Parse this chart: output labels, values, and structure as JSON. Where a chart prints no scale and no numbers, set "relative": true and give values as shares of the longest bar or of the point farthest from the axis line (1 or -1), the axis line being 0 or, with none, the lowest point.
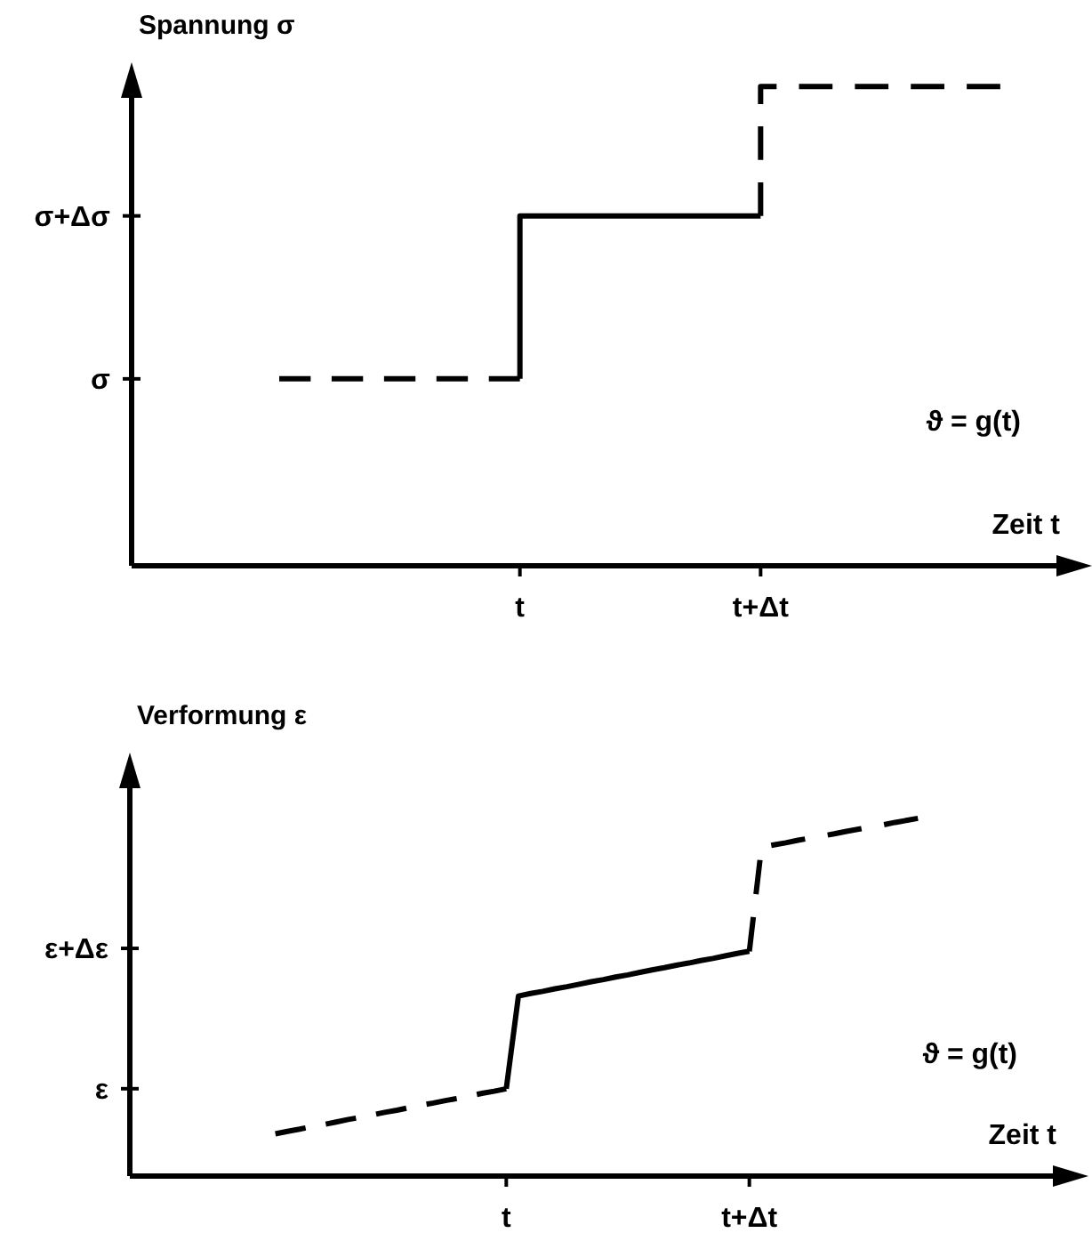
{
  "chart_data": [
    {
      "type": "step",
      "relative": true,
      "ylabel": "Spannung σ",
      "xlabel": "Zeit t",
      "categories": [
        null,
        "t",
        "t+Δt",
        null
      ],
      "series": [
        {
          "values": [
            0.39,
            0.39,
            null,
            null
          ],
          "color": "#000000",
          "line_style": "dashed"
        },
        {
          "values": [
            null,
            0.39,
            0.73,
            null
          ],
          "color": "#000000",
          "line_style": "solid"
        },
        {
          "values": [
            null,
            null,
            0.73,
            1
          ],
          "color": "#000000",
          "line_style": "dashed"
        }
      ],
      "ref_lines": [
        {
          "axis": "y",
          "value": 0.39,
          "label": "σ"
        },
        {
          "axis": "y",
          "value": 0.73,
          "label": "σ+Δσ"
        }
      ],
      "annotations": [
        "ϑ = g(t)"
      ]
    },
    {
      "type": "line",
      "relative": true,
      "ylabel": "Verformung ε",
      "xlabel": "Zeit t",
      "categories": [
        null,
        null,
        null,
        null,
        null,
        null,
        null,
        null,
        null,
        null,
        null,
        null,
        null,
        null,
        null,
        null,
        null,
        null,
        null,
        null,
        "t",
        null,
        null,
        null,
        null,
        null,
        null,
        null,
        null,
        null,
        null,
        null,
        null,
        null,
        null,
        null,
        null,
        null,
        null,
        null,
        "t+Δt",
        null,
        null,
        null,
        null,
        null,
        null,
        null,
        null,
        null,
        null,
        null,
        null,
        null,
        null,
        null,
        null,
        null,
        null,
        null,
        null
      ],
      "series": [
        {
          "values": [
            null,
            0.118,
            0.125,
            0.131,
            0.138,
            0.144,
            0.151,
            0.158,
            0.164,
            0.171,
            0.178,
            0.184,
            0.191,
            0.198,
            0.204,
            0.211,
            0.217,
            0.224,
            0.231,
            0.237,
            0.244,
            null,
            null,
            null,
            null,
            null,
            null,
            null,
            null,
            null,
            null,
            null,
            null,
            null,
            null,
            null,
            null,
            null,
            null,
            null,
            null,
            null,
            null,
            null,
            null,
            null,
            null,
            null,
            null,
            null,
            null,
            null,
            null,
            null,
            null,
            null,
            null,
            null,
            null,
            null,
            null
          ],
          "color": "#000000",
          "line_style": "dashed"
        },
        {
          "values": [
            null,
            null,
            null,
            null,
            null,
            null,
            null,
            null,
            null,
            null,
            null,
            null,
            null,
            null,
            null,
            null,
            null,
            null,
            null,
            null,
            0.244,
            0.503,
            0.51,
            0.516,
            0.523,
            0.529,
            0.536,
            0.543,
            0.549,
            0.556,
            0.562,
            0.569,
            0.576,
            0.582,
            0.589,
            0.595,
            0.602,
            0.608,
            0.615,
            0.622,
            0.628,
            null,
            null,
            null,
            null,
            null,
            null,
            null,
            null,
            null,
            null,
            null,
            null,
            null,
            null,
            null,
            null,
            null,
            null,
            null,
            null
          ],
          "color": "#000000",
          "line_style": "solid"
        },
        {
          "values": [
            null,
            null,
            null,
            null,
            null,
            null,
            null,
            null,
            null,
            null,
            null,
            null,
            null,
            null,
            null,
            null,
            null,
            null,
            null,
            null,
            null,
            null,
            null,
            null,
            null,
            null,
            null,
            null,
            null,
            null,
            null,
            null,
            null,
            null,
            null,
            null,
            null,
            null,
            null,
            null,
            0.628,
            0.919,
            0.925,
            0.931,
            0.938,
            0.944,
            0.95,
            0.956,
            0.963,
            0.969,
            0.975,
            0.981,
            0.988,
            0.994,
            1.0,
            null,
            null,
            null,
            null,
            null,
            null
          ],
          "color": "#000000",
          "line_style": "dashed"
        }
      ],
      "ref_lines": [
        {
          "axis": "y",
          "value": 0.244,
          "label": "ε"
        },
        {
          "axis": "y",
          "value": 0.636,
          "label": "ε+Δε"
        }
      ],
      "annotations": [
        "ϑ = g(t)"
      ]
    }
  ]
}
